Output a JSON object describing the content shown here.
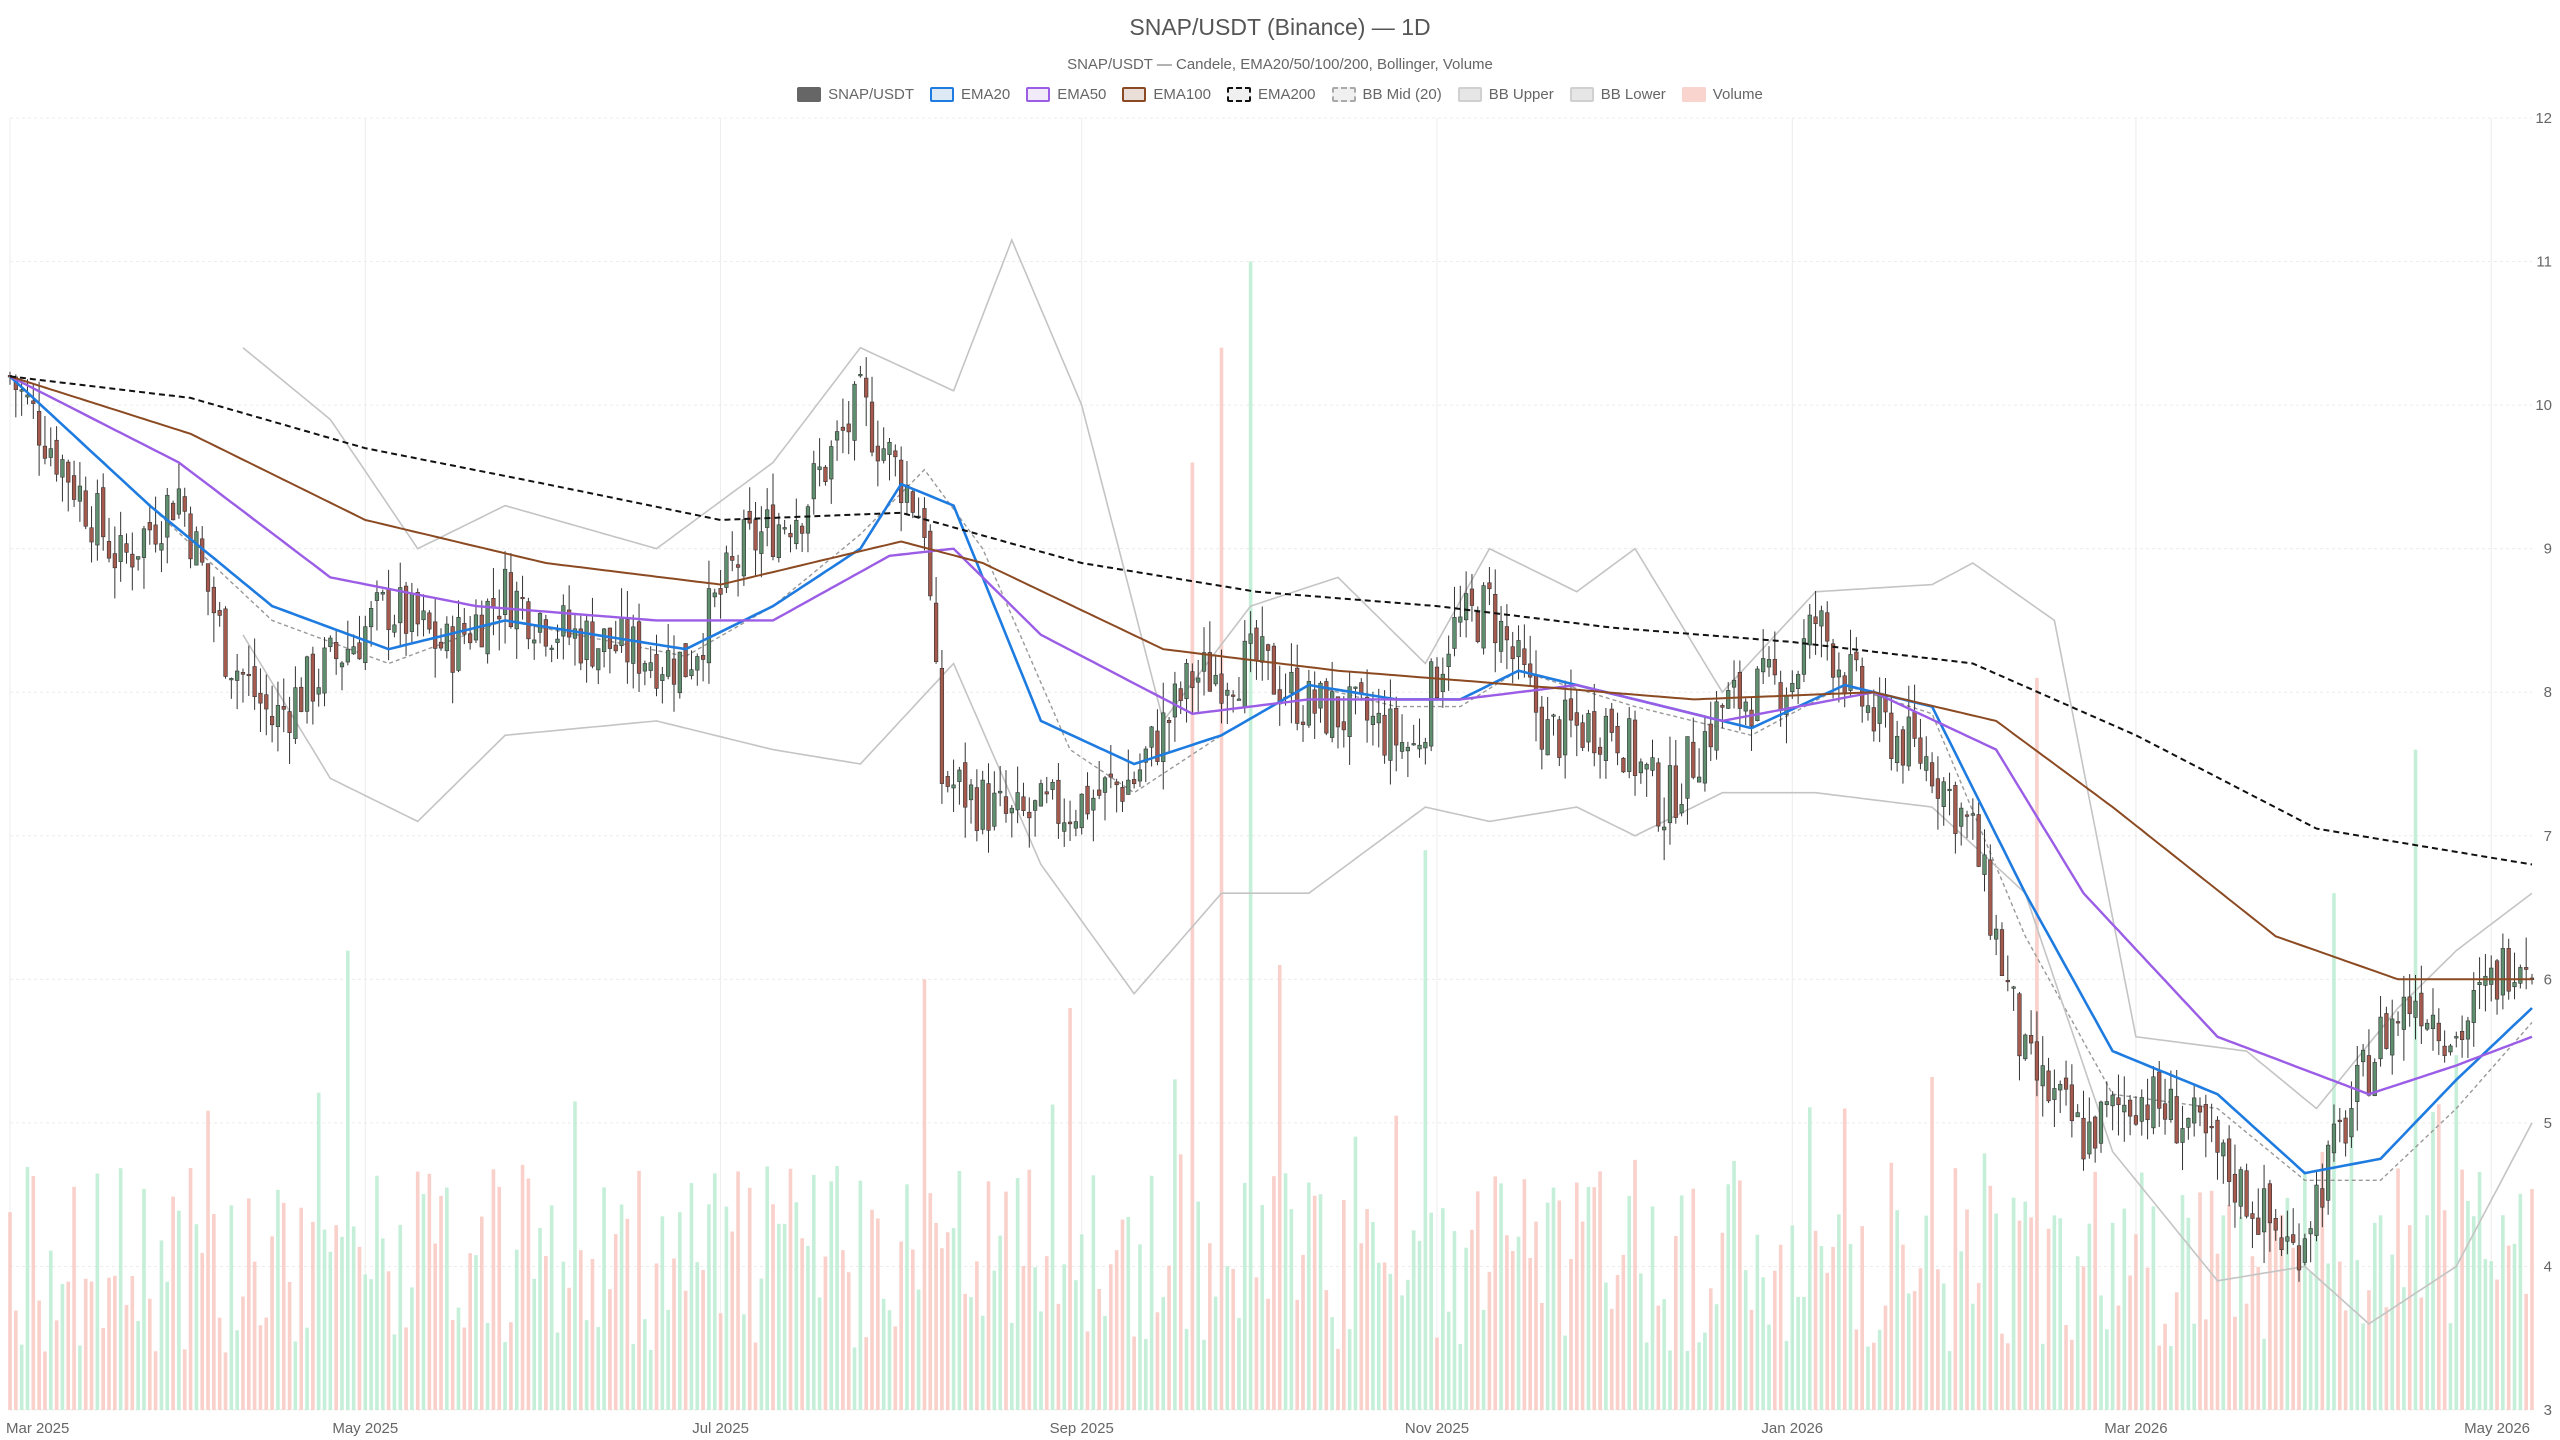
{
  "header": {
    "title": "SNAP/USDT (Binance) — 1D",
    "subtitle": "SNAP/USDT — Candele, EMA20/50/100/200, Bollinger, Volume"
  },
  "legend": [
    {
      "label": "SNAP/USDT",
      "key": "price"
    },
    {
      "label": "EMA20",
      "key": "ema20"
    },
    {
      "label": "EMA50",
      "key": "ema50"
    },
    {
      "label": "EMA100",
      "key": "ema100"
    },
    {
      "label": "EMA200",
      "key": "ema200"
    },
    {
      "label": "BB Mid (20)",
      "key": "bbmid"
    },
    {
      "label": "BB Upper",
      "key": "bbup"
    },
    {
      "label": "BB Lower",
      "key": "bblow"
    },
    {
      "label": "Volume",
      "key": "volume"
    }
  ],
  "colors": {
    "up": "#5f8f6f",
    "down": "#a65a4e",
    "ema20": "#1e7be0",
    "ema50": "#9b5de5",
    "ema100": "#8b4a22",
    "ema200": "#111111",
    "bbmid": "#999999",
    "bband": "#c4c4c4",
    "vol_up": "#b8ebcf",
    "vol_down": "#f7c4bd",
    "grid": "#ececec"
  },
  "chart_data": {
    "type": "candlestick",
    "x_start": "2025-03-01",
    "x_end": "2026-05-08",
    "ylim": [
      3,
      12
    ],
    "y_ticks": [
      3,
      4,
      5,
      6,
      7,
      8,
      9,
      10,
      11,
      12
    ],
    "x_ticks": [
      {
        "label": "Mar 2025",
        "date": "2025-03-01"
      },
      {
        "label": "May 2025",
        "date": "2025-05-01"
      },
      {
        "label": "Jul 2025",
        "date": "2025-07-01"
      },
      {
        "label": "Sep 2025",
        "date": "2025-09-01"
      },
      {
        "label": "Nov 2025",
        "date": "2025-11-01"
      },
      {
        "label": "Jan 2026",
        "date": "2026-01-01"
      },
      {
        "label": "Mar 2026",
        "date": "2026-03-01"
      },
      {
        "label": "May 2026",
        "date": "2026-05-01"
      }
    ],
    "grid": true,
    "legend_position": "top-center",
    "close_path": [
      [
        "2025-03-01",
        10.2
      ],
      [
        "2025-03-10",
        9.6
      ],
      [
        "2025-03-20",
        8.9
      ],
      [
        "2025-03-30",
        9.4
      ],
      [
        "2025-04-07",
        8.3
      ],
      [
        "2025-04-15",
        7.8
      ],
      [
        "2025-04-25",
        8.2
      ],
      [
        "2025-05-05",
        8.6
      ],
      [
        "2025-05-15",
        8.3
      ],
      [
        "2025-05-25",
        8.7
      ],
      [
        "2025-06-05",
        8.4
      ],
      [
        "2025-06-15",
        8.3
      ],
      [
        "2025-06-25",
        8.2
      ],
      [
        "2025-07-05",
        9.0
      ],
      [
        "2025-07-15",
        9.3
      ],
      [
        "2025-07-25",
        10.0
      ],
      [
        "2025-08-05",
        9.2
      ],
      [
        "2025-08-08",
        7.4
      ],
      [
        "2025-08-20",
        7.1
      ],
      [
        "2025-08-30",
        7.2
      ],
      [
        "2025-09-10",
        7.4
      ],
      [
        "2025-09-20",
        8.1
      ],
      [
        "2025-10-01",
        8.2
      ],
      [
        "2025-10-10",
        7.9
      ],
      [
        "2025-10-20",
        7.8
      ],
      [
        "2025-10-28",
        7.6
      ],
      [
        "2025-11-03",
        8.4
      ],
      [
        "2025-11-10",
        8.6
      ],
      [
        "2025-11-20",
        7.7
      ],
      [
        "2025-12-01",
        7.8
      ],
      [
        "2025-12-10",
        7.2
      ],
      [
        "2025-12-20",
        7.9
      ],
      [
        "2026-01-01",
        8.1
      ],
      [
        "2026-01-05",
        8.5
      ],
      [
        "2026-01-15",
        7.8
      ],
      [
        "2026-01-25",
        7.5
      ],
      [
        "2026-02-01",
        7.0
      ],
      [
        "2026-02-10",
        5.4
      ],
      [
        "2026-02-20",
        4.9
      ],
      [
        "2026-03-01",
        5.2
      ],
      [
        "2026-03-10",
        5.0
      ],
      [
        "2026-03-20",
        4.5
      ],
      [
        "2026-03-28",
        4.1
      ],
      [
        "2026-04-05",
        4.9
      ],
      [
        "2026-04-12",
        5.6
      ],
      [
        "2026-04-18",
        5.9
      ],
      [
        "2026-04-25",
        5.6
      ],
      [
        "2026-05-05",
        6.2
      ]
    ],
    "series": [
      {
        "name": "EMA20",
        "points": [
          [
            "2025-03-01",
            10.2
          ],
          [
            "2025-03-25",
            9.3
          ],
          [
            "2025-04-15",
            8.6
          ],
          [
            "2025-05-05",
            8.3
          ],
          [
            "2025-05-25",
            8.5
          ],
          [
            "2025-06-25",
            8.3
          ],
          [
            "2025-07-10",
            8.6
          ],
          [
            "2025-07-25",
            9.0
          ],
          [
            "2025-08-01",
            9.45
          ],
          [
            "2025-08-10",
            9.3
          ],
          [
            "2025-08-25",
            7.8
          ],
          [
            "2025-09-10",
            7.5
          ],
          [
            "2025-09-25",
            7.7
          ],
          [
            "2025-10-10",
            8.05
          ],
          [
            "2025-10-25",
            7.95
          ],
          [
            "2025-11-05",
            7.95
          ],
          [
            "2025-11-15",
            8.15
          ],
          [
            "2025-12-05",
            7.95
          ],
          [
            "2025-12-25",
            7.75
          ],
          [
            "2026-01-10",
            8.05
          ],
          [
            "2026-01-25",
            7.9
          ],
          [
            "2026-02-10",
            6.6
          ],
          [
            "2026-02-25",
            5.5
          ],
          [
            "2026-03-15",
            5.2
          ],
          [
            "2026-03-30",
            4.65
          ],
          [
            "2026-04-12",
            4.75
          ],
          [
            "2026-04-25",
            5.3
          ],
          [
            "2026-05-08",
            5.8
          ]
        ]
      },
      {
        "name": "EMA50",
        "points": [
          [
            "2025-03-01",
            10.2
          ],
          [
            "2025-03-30",
            9.6
          ],
          [
            "2025-04-25",
            8.8
          ],
          [
            "2025-05-20",
            8.6
          ],
          [
            "2025-06-20",
            8.5
          ],
          [
            "2025-07-10",
            8.5
          ],
          [
            "2025-07-30",
            8.95
          ],
          [
            "2025-08-10",
            9.0
          ],
          [
            "2025-08-25",
            8.4
          ],
          [
            "2025-09-20",
            7.85
          ],
          [
            "2025-10-10",
            7.95
          ],
          [
            "2025-11-05",
            7.95
          ],
          [
            "2025-11-25",
            8.05
          ],
          [
            "2025-12-20",
            7.8
          ],
          [
            "2026-01-15",
            8.0
          ],
          [
            "2026-02-05",
            7.6
          ],
          [
            "2026-02-20",
            6.6
          ],
          [
            "2026-03-15",
            5.6
          ],
          [
            "2026-04-10",
            5.2
          ],
          [
            "2026-04-25",
            5.4
          ],
          [
            "2026-05-08",
            5.6
          ]
        ]
      },
      {
        "name": "EMA100",
        "points": [
          [
            "2025-03-01",
            10.2
          ],
          [
            "2025-04-01",
            9.8
          ],
          [
            "2025-05-01",
            9.2
          ],
          [
            "2025-06-01",
            8.9
          ],
          [
            "2025-07-01",
            8.75
          ],
          [
            "2025-08-01",
            9.05
          ],
          [
            "2025-08-15",
            8.9
          ],
          [
            "2025-09-15",
            8.3
          ],
          [
            "2025-10-15",
            8.15
          ],
          [
            "2025-11-15",
            8.05
          ],
          [
            "2025-12-15",
            7.95
          ],
          [
            "2026-01-15",
            8.0
          ],
          [
            "2026-02-05",
            7.8
          ],
          [
            "2026-02-25",
            7.2
          ],
          [
            "2026-03-25",
            6.3
          ],
          [
            "2026-04-15",
            6.0
          ],
          [
            "2026-05-08",
            6.0
          ]
        ]
      },
      {
        "name": "EMA200",
        "points": [
          [
            "2025-03-01",
            10.2
          ],
          [
            "2025-04-01",
            10.05
          ],
          [
            "2025-05-01",
            9.7
          ],
          [
            "2025-06-01",
            9.45
          ],
          [
            "2025-07-01",
            9.2
          ],
          [
            "2025-08-01",
            9.25
          ],
          [
            "2025-09-01",
            8.9
          ],
          [
            "2025-10-01",
            8.7
          ],
          [
            "2025-11-01",
            8.6
          ],
          [
            "2025-12-01",
            8.45
          ],
          [
            "2026-01-01",
            8.35
          ],
          [
            "2026-02-01",
            8.2
          ],
          [
            "2026-03-01",
            7.7
          ],
          [
            "2026-04-01",
            7.05
          ],
          [
            "2026-05-08",
            6.8
          ]
        ]
      },
      {
        "name": "BB Mid (20)",
        "points": [
          [
            "2025-03-01",
            10.2
          ],
          [
            "2025-03-25",
            9.3
          ],
          [
            "2025-04-15",
            8.5
          ],
          [
            "2025-05-05",
            8.2
          ],
          [
            "2025-05-25",
            8.5
          ],
          [
            "2025-06-25",
            8.25
          ],
          [
            "2025-07-10",
            8.6
          ],
          [
            "2025-07-25",
            9.1
          ],
          [
            "2025-08-05",
            9.55
          ],
          [
            "2025-08-15",
            9.0
          ],
          [
            "2025-08-30",
            7.6
          ],
          [
            "2025-09-10",
            7.3
          ],
          [
            "2025-09-25",
            7.7
          ],
          [
            "2025-10-10",
            8.05
          ],
          [
            "2025-10-25",
            7.9
          ],
          [
            "2025-11-05",
            7.9
          ],
          [
            "2025-11-15",
            8.15
          ],
          [
            "2025-12-05",
            7.9
          ],
          [
            "2025-12-25",
            7.7
          ],
          [
            "2026-01-10",
            8.05
          ],
          [
            "2026-01-25",
            7.85
          ],
          [
            "2026-02-10",
            6.3
          ],
          [
            "2026-02-25",
            5.2
          ],
          [
            "2026-03-15",
            5.1
          ],
          [
            "2026-03-30",
            4.6
          ],
          [
            "2026-04-12",
            4.6
          ],
          [
            "2026-04-25",
            5.1
          ],
          [
            "2026-05-08",
            5.7
          ]
        ]
      },
      {
        "name": "BB Upper",
        "points": [
          [
            "2025-04-10",
            10.4
          ],
          [
            "2025-04-25",
            9.9
          ],
          [
            "2025-05-10",
            9.0
          ],
          [
            "2025-05-25",
            9.3
          ],
          [
            "2025-06-20",
            9.0
          ],
          [
            "2025-07-10",
            9.6
          ],
          [
            "2025-07-25",
            10.4
          ],
          [
            "2025-08-10",
            10.1
          ],
          [
            "2025-08-20",
            11.15
          ],
          [
            "2025-09-01",
            10.0
          ],
          [
            "2025-09-15",
            7.8
          ],
          [
            "2025-09-30",
            8.6
          ],
          [
            "2025-10-15",
            8.8
          ],
          [
            "2025-10-30",
            8.2
          ],
          [
            "2025-11-10",
            9.0
          ],
          [
            "2025-11-25",
            8.7
          ],
          [
            "2025-12-05",
            9.0
          ],
          [
            "2025-12-20",
            8.0
          ],
          [
            "2026-01-05",
            8.7
          ],
          [
            "2026-01-25",
            8.75
          ],
          [
            "2026-02-01",
            8.9
          ],
          [
            "2026-02-15",
            8.5
          ],
          [
            "2026-03-01",
            5.6
          ],
          [
            "2026-03-20",
            5.5
          ],
          [
            "2026-04-01",
            5.1
          ],
          [
            "2026-04-15",
            5.8
          ],
          [
            "2026-04-25",
            6.2
          ],
          [
            "2026-05-08",
            6.6
          ]
        ]
      },
      {
        "name": "BB Lower",
        "points": [
          [
            "2025-04-10",
            8.4
          ],
          [
            "2025-04-25",
            7.4
          ],
          [
            "2025-05-10",
            7.1
          ],
          [
            "2025-05-25",
            7.7
          ],
          [
            "2025-06-20",
            7.8
          ],
          [
            "2025-07-10",
            7.6
          ],
          [
            "2025-07-25",
            7.5
          ],
          [
            "2025-08-10",
            8.2
          ],
          [
            "2025-08-25",
            6.8
          ],
          [
            "2025-09-10",
            5.9
          ],
          [
            "2025-09-25",
            6.6
          ],
          [
            "2025-10-10",
            6.6
          ],
          [
            "2025-10-30",
            7.2
          ],
          [
            "2025-11-10",
            7.1
          ],
          [
            "2025-11-25",
            7.2
          ],
          [
            "2025-12-05",
            7.0
          ],
          [
            "2025-12-20",
            7.3
          ],
          [
            "2026-01-05",
            7.3
          ],
          [
            "2026-01-25",
            7.2
          ],
          [
            "2026-02-10",
            6.6
          ],
          [
            "2026-02-25",
            4.8
          ],
          [
            "2026-03-15",
            3.9
          ],
          [
            "2026-03-30",
            4.0
          ],
          [
            "2026-04-10",
            3.6
          ],
          [
            "2026-04-25",
            4.0
          ],
          [
            "2026-05-08",
            5.0
          ]
        ]
      }
    ],
    "volume": {
      "axis_max": 12,
      "baseline": 3,
      "spikes": [
        [
          "2025-04-28",
          6.2
        ],
        [
          "2025-08-05",
          6.0
        ],
        [
          "2025-08-30",
          5.8
        ],
        [
          "2025-09-20",
          9.6
        ],
        [
          "2025-09-25",
          10.4
        ],
        [
          "2025-09-30",
          11.0
        ],
        [
          "2025-10-05",
          6.1
        ],
        [
          "2025-10-30",
          6.9
        ],
        [
          "2026-01-10",
          5.1
        ],
        [
          "2026-02-12",
          8.1
        ],
        [
          "2026-04-04",
          6.6
        ],
        [
          "2026-04-18",
          7.6
        ]
      ]
    }
  }
}
